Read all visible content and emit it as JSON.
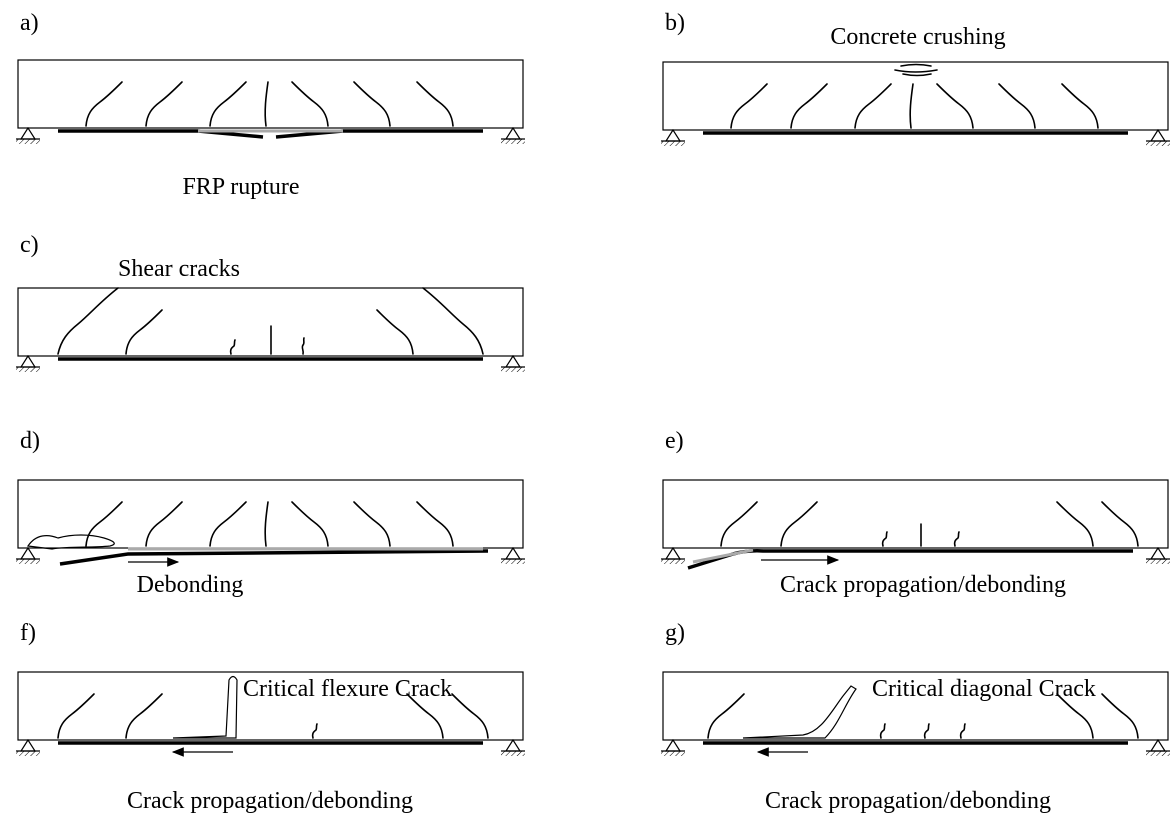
{
  "panels": [
    {
      "label": "a)",
      "caption": "FRP rupture"
    },
    {
      "label": "b)",
      "caption": "Concrete crushing"
    },
    {
      "label": "c)",
      "caption": "Shear cracks"
    },
    {
      "label": "d)",
      "caption": "Debonding"
    },
    {
      "label": "e)",
      "caption": "Crack propagation/debonding"
    },
    {
      "label": "f)",
      "caption": "Crack propagation/debonding",
      "annotation": "Critical flexure Crack"
    },
    {
      "label": "g)",
      "caption": "Crack propagation/debonding",
      "annotation": "Critical diagonal Crack"
    }
  ]
}
